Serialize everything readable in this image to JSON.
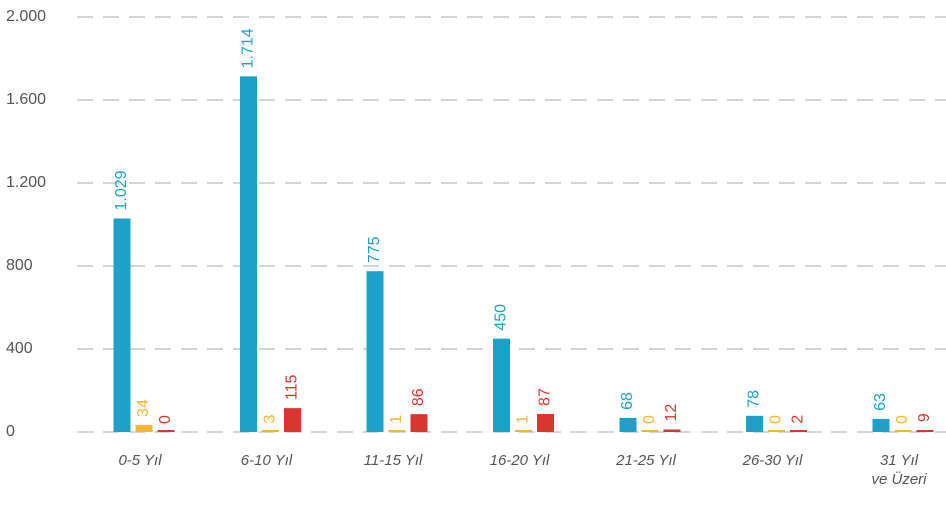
{
  "chart_data": {
    "type": "bar",
    "categories": [
      "0-5 Yıl",
      "6-10 Yıl",
      "11-15 Yıl",
      "16-20 Yıl",
      "21-25 Yıl",
      "26-30 Yıl",
      "31 Yıl\nve Üzeri"
    ],
    "series": [
      {
        "color": "#1ea1c9",
        "values": [
          1029,
          1714,
          775,
          450,
          68,
          78,
          63
        ],
        "value_labels": [
          "1.029",
          "1.714",
          "775",
          "450",
          "68",
          "78",
          "63"
        ]
      },
      {
        "color": "#f6b531",
        "values": [
          34,
          3,
          1,
          1,
          0,
          0,
          0
        ]
      },
      {
        "color": "#d7372e",
        "values": [
          0,
          115,
          86,
          87,
          12,
          2,
          9
        ]
      }
    ],
    "ylim": [
      0,
      2000
    ],
    "yticks": [
      0,
      400,
      800,
      {
        "value": 1200,
        "label": "1.200"
      },
      {
        "value": 1600,
        "label": "1.600"
      },
      {
        "value": 2000,
        "label": "2.000"
      }
    ],
    "grid": true
  }
}
